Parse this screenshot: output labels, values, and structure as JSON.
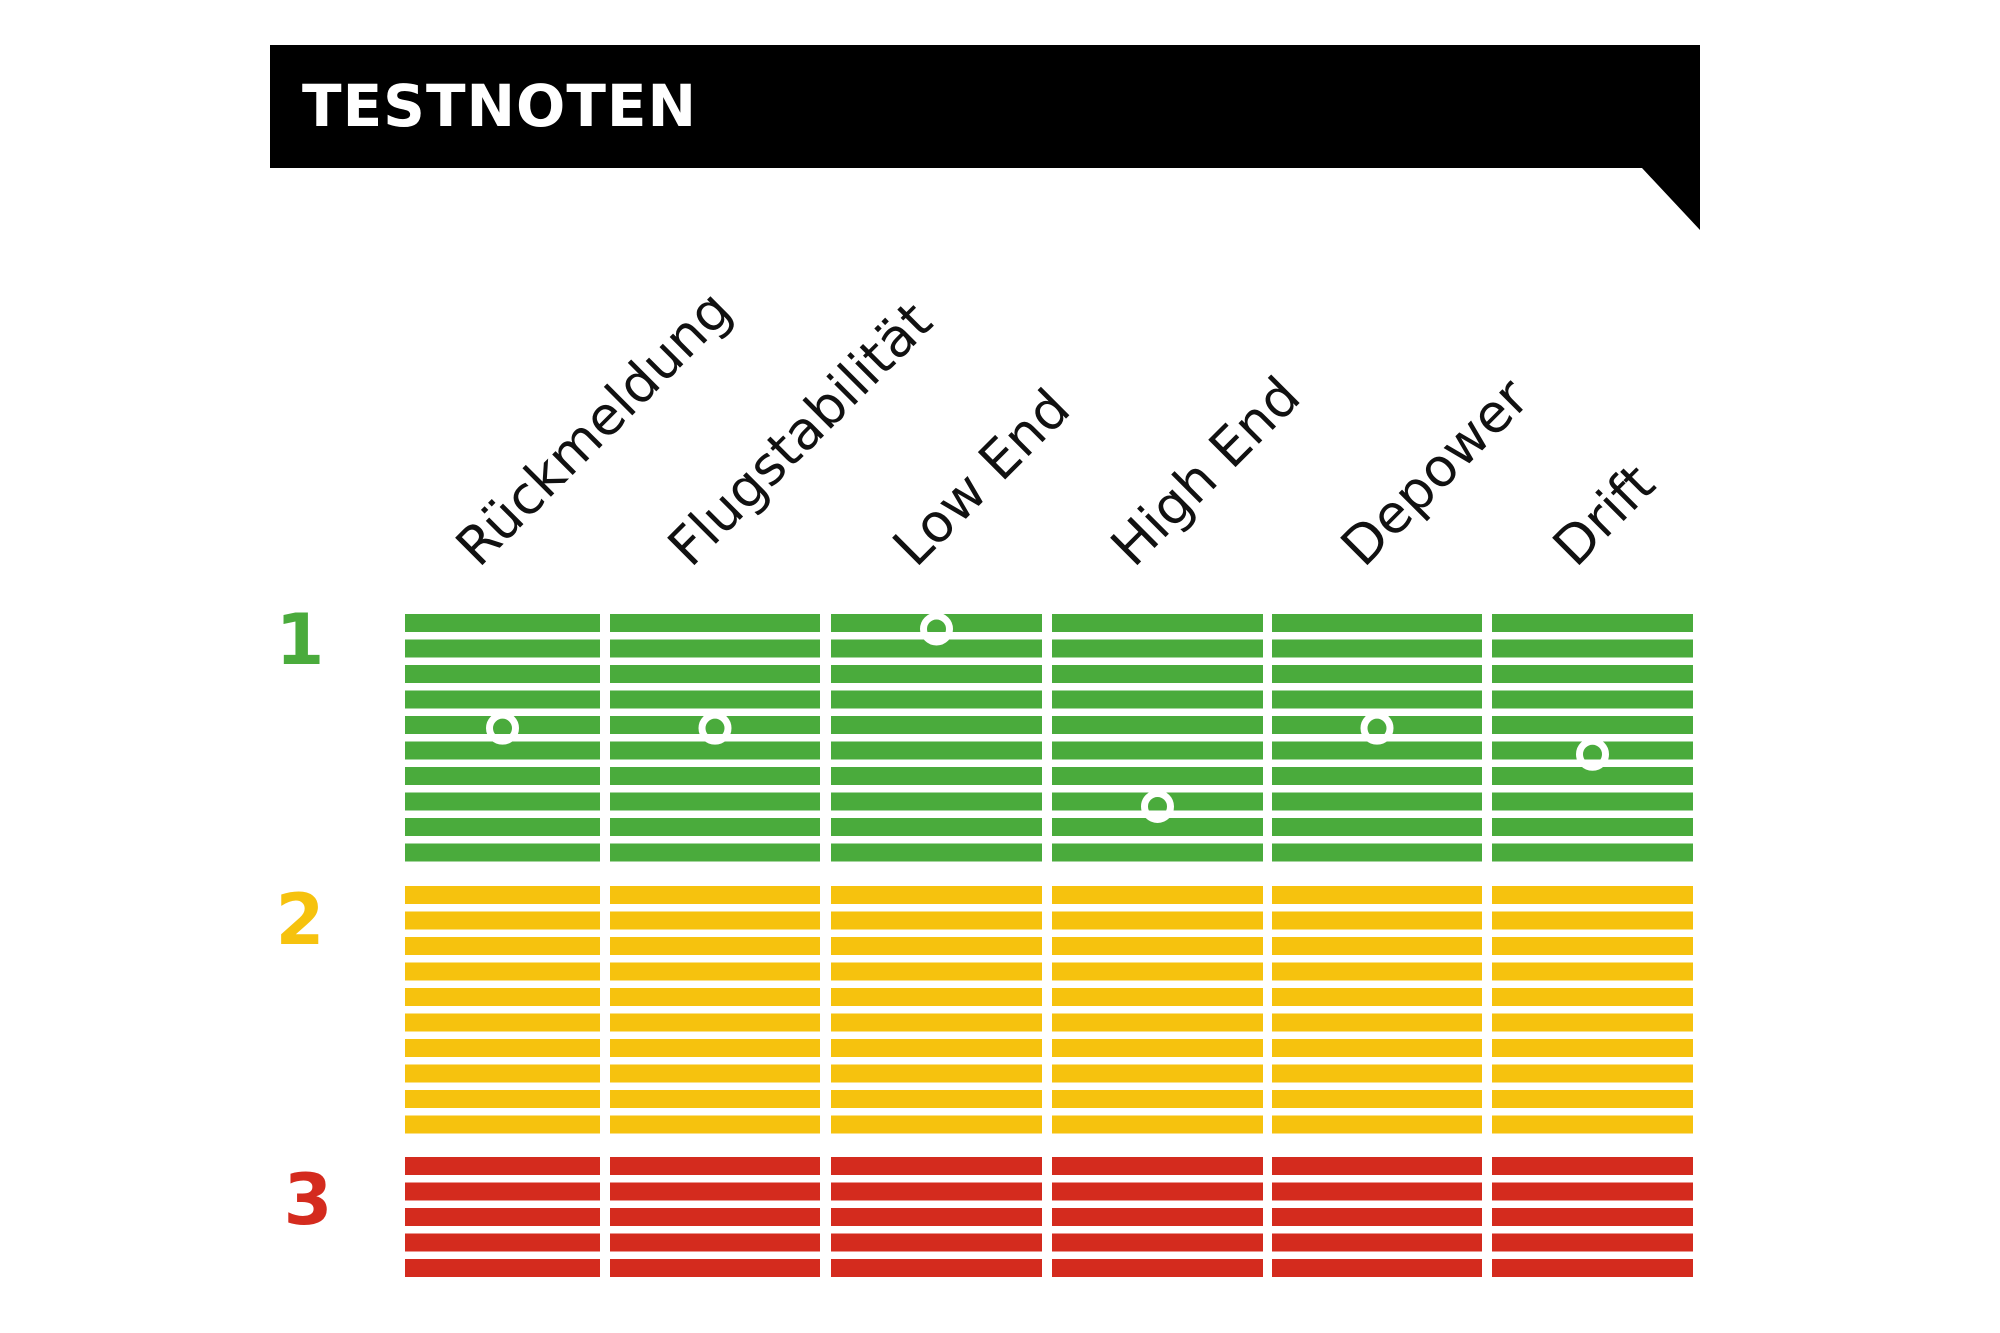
{
  "header": {
    "title": "TESTNOTEN"
  },
  "chart_data": {
    "type": "scatter",
    "title": "TESTNOTEN",
    "categories": [
      "Rückmeldung",
      "Flugstabilität",
      "Low End",
      "High End",
      "Depower",
      "Drift"
    ],
    "values": [
      1.38,
      1.38,
      1.0,
      1.68,
      1.38,
      1.48
    ],
    "ylim": [
      1,
      3
    ],
    "y_direction": "down",
    "grades": [
      {
        "label": "1",
        "color": "#4aab3c",
        "stripes": 10
      },
      {
        "label": "2",
        "color": "#f6c20e",
        "stripes": 10
      },
      {
        "label": "3",
        "color": "#d42b1e",
        "stripes": 5
      }
    ],
    "marker_color": "#ffffff",
    "grid": false,
    "legend": "none"
  }
}
